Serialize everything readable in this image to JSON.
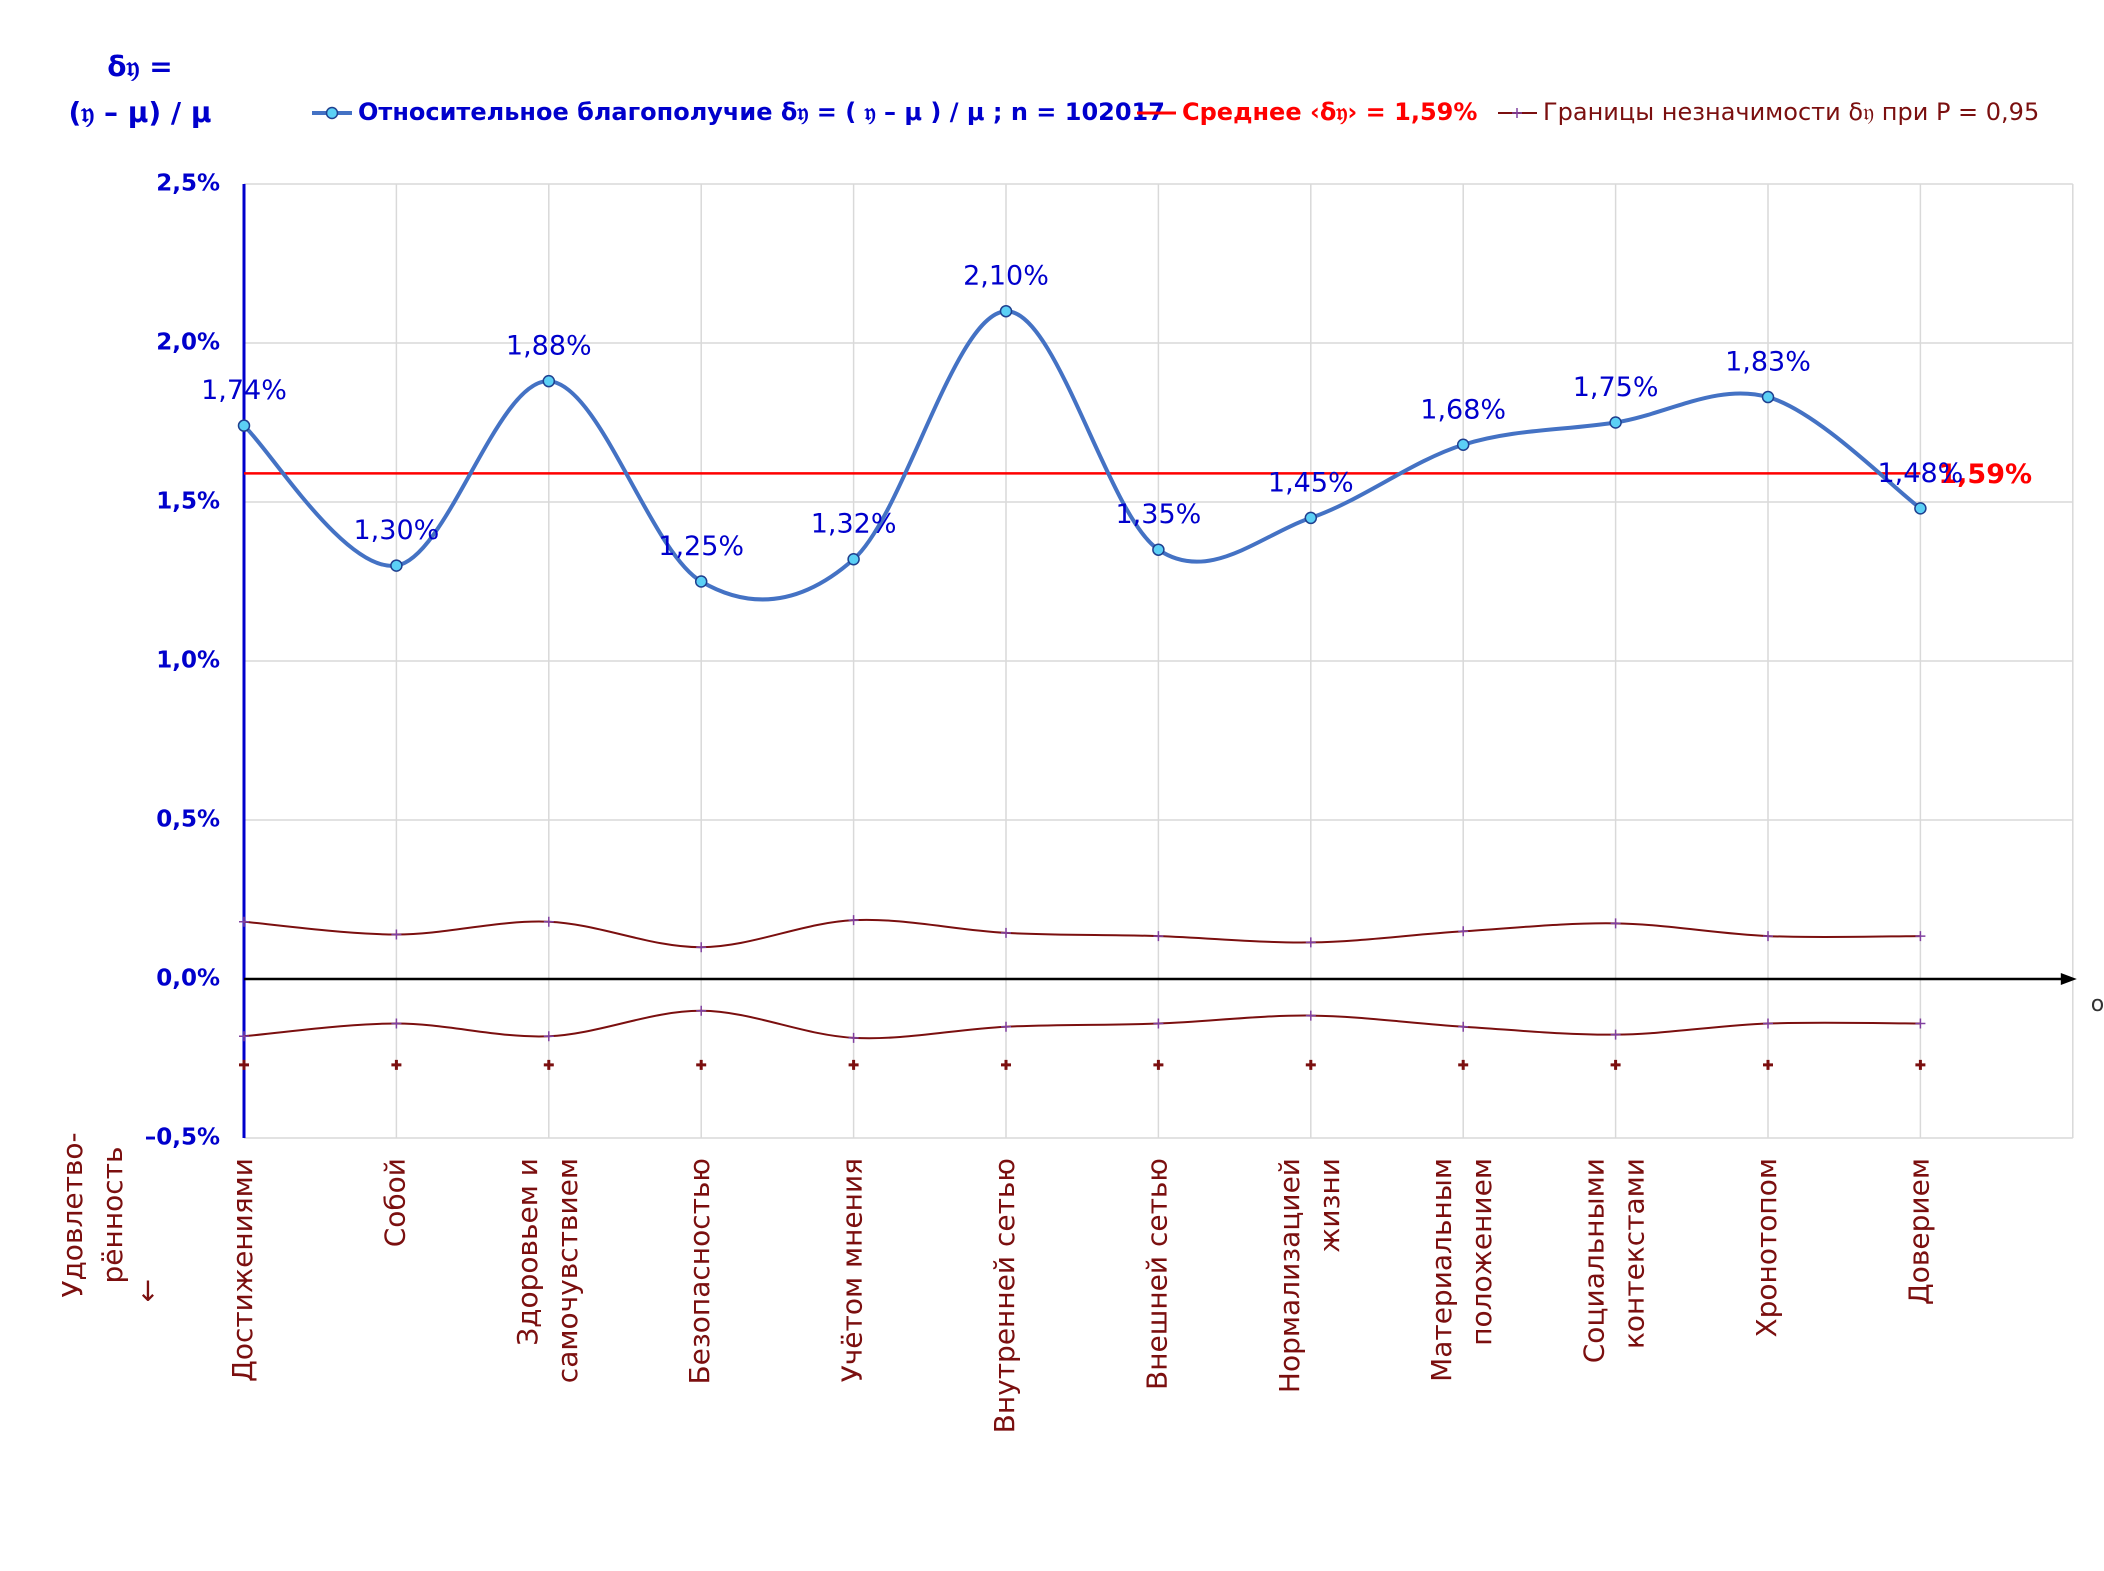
{
  "chart_data": {
    "type": "line",
    "y_title": [
      "δ𝔶 =",
      "(𝔶 – μ) / μ"
    ],
    "x_title": [
      "Удовлетво-",
      "рённость",
      "↓"
    ],
    "x_axis_label": "ox",
    "categories": [
      [
        "Достижениями"
      ],
      [
        "Собой"
      ],
      [
        "Здоровьем и",
        "самочувствием"
      ],
      [
        "Безопасностью"
      ],
      [
        "Учётом мнения"
      ],
      [
        "Внутренней сетью"
      ],
      [
        "Внешней сетью"
      ],
      [
        "Нормализацией",
        "жизни"
      ],
      [
        "Материальным",
        "положением"
      ],
      [
        "Социальными",
        "контекстами"
      ],
      [
        "Хронотопом"
      ],
      [
        "Доверием"
      ]
    ],
    "series": [
      {
        "name": "Относительное благополучие δ𝔶 = ( 𝔶 – μ ) / μ ; n = 102017",
        "color": "#4472c4",
        "values": [
          1.74,
          1.3,
          1.88,
          1.25,
          1.32,
          2.1,
          1.35,
          1.45,
          1.68,
          1.75,
          1.83,
          1.48
        ],
        "value_labels": [
          "1,74%",
          "1,30%",
          "1,88%",
          "1,25%",
          "1,32%",
          "2,10%",
          "1,35%",
          "1,45%",
          "1,68%",
          "1,75%",
          "1,83%",
          "1,48%"
        ]
      },
      {
        "name": "Границы незначимости δ𝔶 при P = 0,95",
        "color": "#7b0f0f",
        "values": [
          0.18,
          0.14,
          0.18,
          0.1,
          0.185,
          0.145,
          0.135,
          0.115,
          0.15,
          0.175,
          0.135,
          0.135
        ]
      },
      {
        "color": "#7b0f0f",
        "values": [
          -0.18,
          -0.14,
          -0.18,
          -0.1,
          -0.185,
          -0.15,
          -0.14,
          -0.115,
          -0.15,
          -0.175,
          -0.14,
          -0.14
        ]
      }
    ],
    "markers": {
      "color": "#7b0f0f",
      "values": [
        -0.27,
        -0.27,
        -0.27,
        -0.27,
        -0.27,
        -0.27,
        -0.27,
        -0.27,
        -0.27,
        -0.27,
        -0.27,
        -0.27
      ]
    },
    "mean": {
      "name": "Среднее ‹δ𝔶› = 1,59%",
      "value": 1.59,
      "label": "1,59%",
      "color": "#ff0000"
    },
    "ylim": [
      -0.5,
      2.5
    ],
    "yticks": [
      {
        "value": -0.5,
        "label": "–0,5%"
      },
      {
        "value": 0,
        "label": "0,0%"
      },
      {
        "value": 0.5,
        "label": "0,5%"
      },
      {
        "value": 1.0,
        "label": "1,0%"
      },
      {
        "value": 1.5,
        "label": "1,5%"
      },
      {
        "value": 2.0,
        "label": "2,0%"
      },
      {
        "value": 2.5,
        "label": "2,5%"
      }
    ],
    "grid": true
  }
}
